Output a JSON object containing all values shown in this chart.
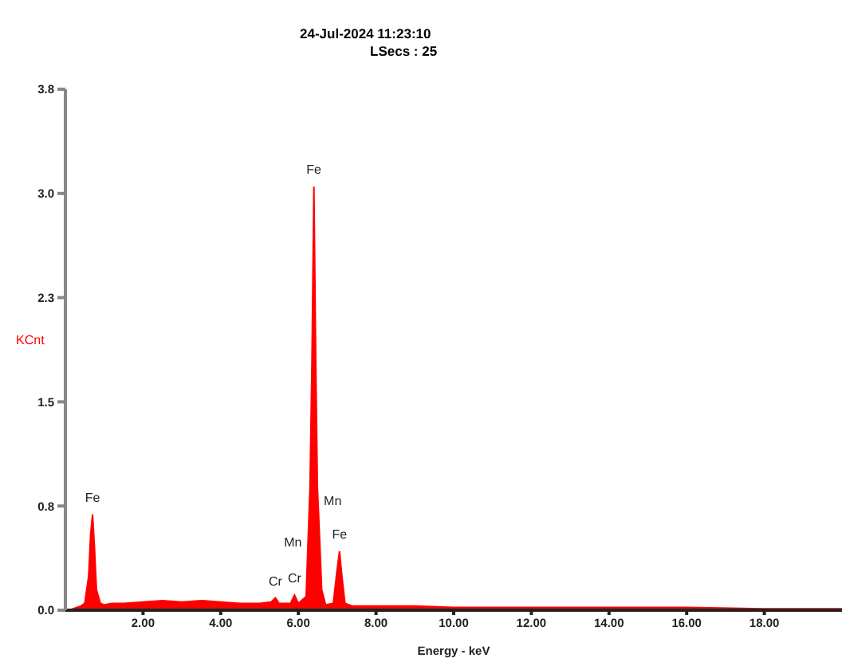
{
  "chart_data": {
    "type": "area",
    "title": "24-Jul-2024 11:23:10",
    "subtitle": "LSecs : 25",
    "xlabel": "Energy - keV",
    "ylabel": "KCnt",
    "x": [
      0.1,
      0.2,
      0.3,
      0.4,
      0.5,
      0.6,
      0.65,
      0.7,
      0.75,
      0.8,
      0.9,
      1.0,
      1.2,
      1.5,
      2.0,
      2.5,
      3.0,
      3.5,
      4.0,
      4.5,
      5.0,
      5.3,
      5.41,
      5.5,
      5.8,
      5.9,
      6.0,
      6.2,
      6.3,
      6.35,
      6.4,
      6.45,
      6.49,
      6.55,
      6.6,
      6.7,
      6.9,
      7.0,
      7.06,
      7.12,
      7.2,
      7.4,
      8.0,
      9.0,
      10,
      12,
      14,
      16,
      18,
      19,
      20
    ],
    "series": [
      {
        "color": "#ff0000",
        "values": [
          0.0,
          0.01,
          0.02,
          0.03,
          0.05,
          0.25,
          0.55,
          0.7,
          0.45,
          0.15,
          0.05,
          0.04,
          0.05,
          0.05,
          0.06,
          0.07,
          0.06,
          0.07,
          0.06,
          0.05,
          0.05,
          0.06,
          0.09,
          0.05,
          0.05,
          0.11,
          0.05,
          0.1,
          0.9,
          1.8,
          3.09,
          1.75,
          0.9,
          0.5,
          0.15,
          0.04,
          0.05,
          0.3,
          0.43,
          0.25,
          0.05,
          0.03,
          0.03,
          0.03,
          0.02,
          0.02,
          0.02,
          0.02,
          0.01,
          0.01,
          0.01
        ]
      }
    ],
    "xlim": [
      0,
      20
    ],
    "xticks": [
      {
        "value": 2,
        "label": "2.00"
      },
      {
        "value": 4,
        "label": "4.00"
      },
      {
        "value": 6,
        "label": "6.00"
      },
      {
        "value": 8,
        "label": "8.00"
      },
      {
        "value": 10,
        "label": "10.00"
      },
      {
        "value": 12,
        "label": "12.00"
      },
      {
        "value": 14,
        "label": "14.00"
      },
      {
        "value": 16,
        "label": "16.00"
      },
      {
        "value": 18,
        "label": "18.00"
      }
    ],
    "ylim": [
      0,
      3.8
    ],
    "yticks": [
      {
        "value": 0,
        "label": "0.0"
      },
      {
        "value": 0.76,
        "label": "0.8"
      },
      {
        "value": 1.52,
        "label": "1.5"
      },
      {
        "value": 2.28,
        "label": "2.3"
      },
      {
        "value": 3.04,
        "label": "3.0"
      },
      {
        "value": 3.8,
        "label": "3.8"
      }
    ],
    "annotations": [
      {
        "text": "Fe",
        "x": 0.7,
        "y": 0.7
      },
      {
        "text": "Cr",
        "x": 5.41,
        "y": 0.09
      },
      {
        "text": "Cr",
        "x": 5.9,
        "y": 0.11
      },
      {
        "text": "Mn",
        "x": 6.25,
        "y": 0.5
      },
      {
        "text": "Fe",
        "x": 6.4,
        "y": 3.09
      },
      {
        "text": "Mn",
        "x": 6.49,
        "y": 0.8
      },
      {
        "text": "Fe",
        "x": 7.06,
        "y": 0.43
      }
    ]
  }
}
